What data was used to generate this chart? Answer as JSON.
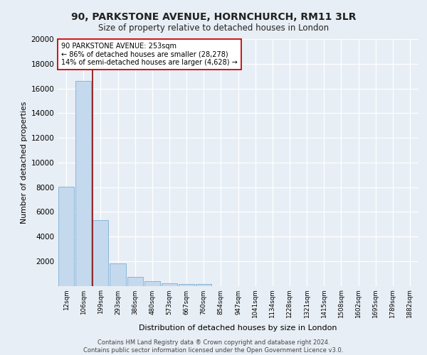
{
  "title_line1": "90, PARKSTONE AVENUE, HORNCHURCH, RM11 3LR",
  "title_line2": "Size of property relative to detached houses in London",
  "xlabel": "Distribution of detached houses by size in London",
  "ylabel": "Number of detached properties",
  "footnote": "Contains HM Land Registry data ® Crown copyright and database right 2024.\nContains public sector information licensed under the Open Government Licence v3.0.",
  "bar_labels": [
    "12sqm",
    "106sqm",
    "199sqm",
    "293sqm",
    "386sqm",
    "480sqm",
    "573sqm",
    "667sqm",
    "760sqm",
    "854sqm",
    "947sqm",
    "1041sqm",
    "1134sqm",
    "1228sqm",
    "1321sqm",
    "1415sqm",
    "1508sqm",
    "1602sqm",
    "1695sqm",
    "1789sqm",
    "1882sqm"
  ],
  "bar_values": [
    8050,
    16600,
    5300,
    1800,
    700,
    380,
    220,
    150,
    120,
    0,
    0,
    0,
    0,
    0,
    0,
    0,
    0,
    0,
    0,
    0,
    0
  ],
  "bar_color": "#c5d9ee",
  "bar_edgecolor": "#7aafd4",
  "annotation_text": "90 PARKSTONE AVENUE: 253sqm\n← 86% of detached houses are smaller (28,278)\n14% of semi-detached houses are larger (4,628) →",
  "vline_x": 1.52,
  "vline_color": "#8b1a1a",
  "annotation_box_edgecolor": "#cc0000",
  "ylim": [
    0,
    20000
  ],
  "yticks": [
    0,
    2000,
    4000,
    6000,
    8000,
    10000,
    12000,
    14000,
    16000,
    18000,
    20000
  ],
  "background_color": "#e8eef5",
  "axes_background": "#e8eef5",
  "grid_color": "#ffffff"
}
